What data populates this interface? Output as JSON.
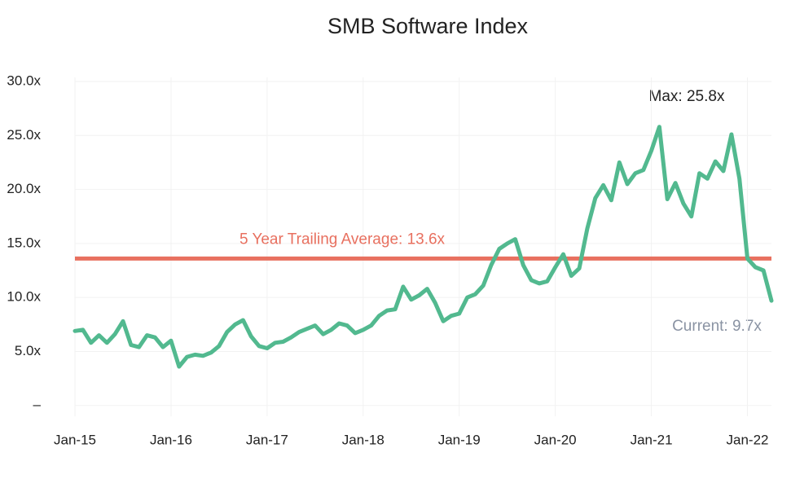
{
  "chart_data": {
    "type": "line",
    "title": "SMB Software Index",
    "x": [
      "2015-01",
      "2015-02",
      "2015-03",
      "2015-04",
      "2015-05",
      "2015-06",
      "2015-07",
      "2015-08",
      "2015-09",
      "2015-10",
      "2015-11",
      "2015-12",
      "2016-01",
      "2016-02",
      "2016-03",
      "2016-04",
      "2016-05",
      "2016-06",
      "2016-07",
      "2016-08",
      "2016-09",
      "2016-10",
      "2016-11",
      "2016-12",
      "2017-01",
      "2017-02",
      "2017-03",
      "2017-04",
      "2017-05",
      "2017-06",
      "2017-07",
      "2017-08",
      "2017-09",
      "2017-10",
      "2017-11",
      "2017-12",
      "2018-01",
      "2018-02",
      "2018-03",
      "2018-04",
      "2018-05",
      "2018-06",
      "2018-07",
      "2018-08",
      "2018-09",
      "2018-10",
      "2018-11",
      "2018-12",
      "2019-01",
      "2019-02",
      "2019-03",
      "2019-04",
      "2019-05",
      "2019-06",
      "2019-07",
      "2019-08",
      "2019-09",
      "2019-10",
      "2019-11",
      "2019-12",
      "2020-01",
      "2020-02",
      "2020-03",
      "2020-04",
      "2020-05",
      "2020-06",
      "2020-07",
      "2020-08",
      "2020-09",
      "2020-10",
      "2020-11",
      "2020-12",
      "2021-01",
      "2021-02",
      "2021-03",
      "2021-04",
      "2021-05",
      "2021-06",
      "2021-07",
      "2021-08",
      "2021-09",
      "2021-10",
      "2021-11",
      "2021-12",
      "2022-01",
      "2022-02",
      "2022-03",
      "2022-04"
    ],
    "series": [
      {
        "name": "SMB Software Index",
        "color": "#52b98f",
        "values": [
          6.9,
          7.0,
          5.8,
          6.5,
          5.8,
          6.6,
          7.8,
          5.6,
          5.4,
          6.5,
          6.3,
          5.4,
          6.0,
          3.6,
          4.5,
          4.7,
          4.6,
          4.9,
          5.5,
          6.8,
          7.5,
          7.9,
          6.4,
          5.5,
          5.3,
          5.8,
          5.9,
          6.3,
          6.8,
          7.1,
          7.4,
          6.6,
          7.0,
          7.6,
          7.4,
          6.7,
          7.0,
          7.4,
          8.3,
          8.8,
          8.9,
          11.0,
          9.8,
          10.2,
          10.8,
          9.5,
          7.8,
          8.3,
          8.5,
          10.0,
          10.3,
          11.1,
          13.0,
          14.5,
          15.0,
          15.4,
          13.0,
          11.6,
          11.3,
          11.5,
          12.8,
          14.0,
          12.0,
          12.7,
          16.4,
          19.2,
          20.4,
          19.0,
          22.5,
          20.5,
          21.5,
          21.8,
          23.6,
          25.8,
          19.1,
          20.6,
          18.7,
          17.5,
          21.5,
          21.0,
          22.6,
          21.7,
          25.1,
          21.0,
          13.6,
          12.8,
          12.5,
          9.7
        ]
      }
    ],
    "xlim": [
      "2015-01",
      "2022-04"
    ],
    "xticks": [
      {
        "value": "2015-01",
        "label": "Jan-15"
      },
      {
        "value": "2016-01",
        "label": "Jan-16"
      },
      {
        "value": "2017-01",
        "label": "Jan-17"
      },
      {
        "value": "2018-01",
        "label": "Jan-18"
      },
      {
        "value": "2019-01",
        "label": "Jan-19"
      },
      {
        "value": "2020-01",
        "label": "Jan-20"
      },
      {
        "value": "2021-01",
        "label": "Jan-21"
      },
      {
        "value": "2022-01",
        "label": "Jan-22"
      }
    ],
    "ylim": [
      -1,
      30
    ],
    "yticks": [
      {
        "value": 0,
        "label": "–"
      },
      {
        "value": 5,
        "label": "5.0x"
      },
      {
        "value": 10,
        "label": "10.0x"
      },
      {
        "value": 15,
        "label": "15.0x"
      },
      {
        "value": 20,
        "label": "20.0x"
      },
      {
        "value": 25,
        "label": "25.0x"
      },
      {
        "value": 30,
        "label": "30.0x"
      }
    ],
    "grid": true,
    "average_line": {
      "value": 13.6,
      "color": "#e8705f",
      "label": "5 Year Trailing Average: 13.6x"
    },
    "annotations": {
      "max": "Max: 25.8x",
      "current": "Current: 9.7x"
    }
  }
}
